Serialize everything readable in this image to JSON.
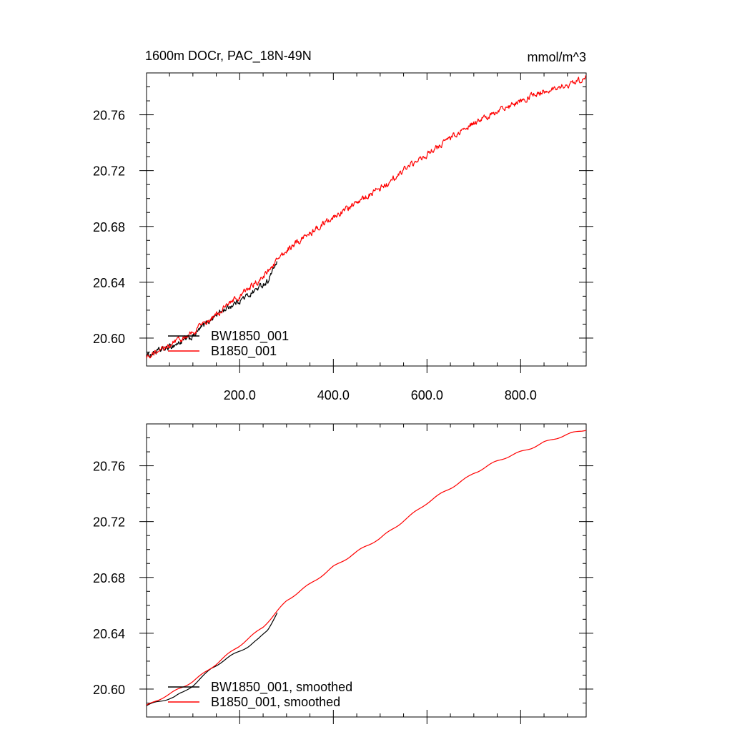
{
  "colors": {
    "BW1850_001": "#000000",
    "B1850_001": "#ff0000"
  },
  "figure": {
    "title": "1600m DOCr, PAC_18N-49N",
    "units": "mmol/m^3"
  },
  "chart_data": [
    {
      "type": "line",
      "title": "1600m DOCr, PAC_18N-49N",
      "units_label": "mmol/m^3",
      "xlabel": "",
      "ylabel": "",
      "xlim": [
        1,
        940
      ],
      "ylim": [
        20.58,
        20.79
      ],
      "xticks": [
        200,
        400,
        600,
        800
      ],
      "xtick_labels": [
        "200.0",
        "400.0",
        "600.0",
        "800.0"
      ],
      "yticks": [
        20.6,
        20.64,
        20.68,
        20.72,
        20.76
      ],
      "ytick_labels": [
        "20.60",
        "20.64",
        "20.68",
        "20.72",
        "20.76"
      ],
      "grid": false,
      "legend_position": "bottom-left",
      "series": [
        {
          "name": "BW1850_001",
          "color": "#000000",
          "noise": true,
          "x": [
            1,
            20,
            40,
            60,
            80,
            100,
            120,
            140,
            160,
            180,
            200,
            220,
            240,
            260,
            280
          ],
          "y": [
            20.587,
            20.59,
            20.592,
            20.595,
            20.598,
            20.601,
            20.608,
            20.614,
            20.619,
            20.623,
            20.627,
            20.631,
            20.636,
            20.641,
            20.655
          ]
        },
        {
          "name": "B1850_001",
          "color": "#ff0000",
          "noise": true,
          "x": [
            1,
            20,
            50,
            100,
            150,
            200,
            250,
            300,
            350,
            400,
            450,
            500,
            550,
            600,
            650,
            700,
            750,
            800,
            850,
            900,
            940
          ],
          "y": [
            20.587,
            20.59,
            20.595,
            20.604,
            20.617,
            20.63,
            20.644,
            20.663,
            20.675,
            20.687,
            20.697,
            20.707,
            20.72,
            20.732,
            20.743,
            20.754,
            20.762,
            20.77,
            20.777,
            20.782,
            20.786
          ]
        }
      ]
    },
    {
      "type": "line",
      "title": "",
      "xlabel": "",
      "ylabel": "",
      "xlim": [
        1,
        940
      ],
      "ylim": [
        20.58,
        20.79
      ],
      "xticks": [
        200,
        400,
        600,
        800
      ],
      "yticks": [
        20.6,
        20.64,
        20.68,
        20.72,
        20.76
      ],
      "ytick_labels": [
        "20.60",
        "20.64",
        "20.68",
        "20.72",
        "20.76"
      ],
      "grid": false,
      "legend_position": "bottom-left",
      "series": [
        {
          "name": "BW1850_001, smoothed",
          "color": "#000000",
          "noise": false,
          "x": [
            1,
            20,
            40,
            60,
            80,
            100,
            120,
            140,
            160,
            180,
            200,
            220,
            240,
            260,
            280
          ],
          "y": [
            20.588,
            20.59,
            20.592,
            20.594,
            20.598,
            20.603,
            20.609,
            20.615,
            20.619,
            20.623,
            20.627,
            20.631,
            20.636,
            20.643,
            20.655
          ]
        },
        {
          "name": "B1850_001, smoothed",
          "color": "#ff0000",
          "noise": false,
          "x": [
            1,
            20,
            50,
            100,
            150,
            200,
            250,
            300,
            350,
            400,
            450,
            500,
            550,
            600,
            650,
            700,
            750,
            800,
            850,
            900,
            940
          ],
          "y": [
            20.588,
            20.591,
            20.596,
            20.606,
            20.618,
            20.631,
            20.645,
            20.663,
            20.675,
            20.688,
            20.698,
            20.708,
            20.721,
            20.733,
            20.744,
            20.755,
            20.763,
            20.77,
            20.777,
            20.782,
            20.786
          ]
        }
      ]
    }
  ]
}
